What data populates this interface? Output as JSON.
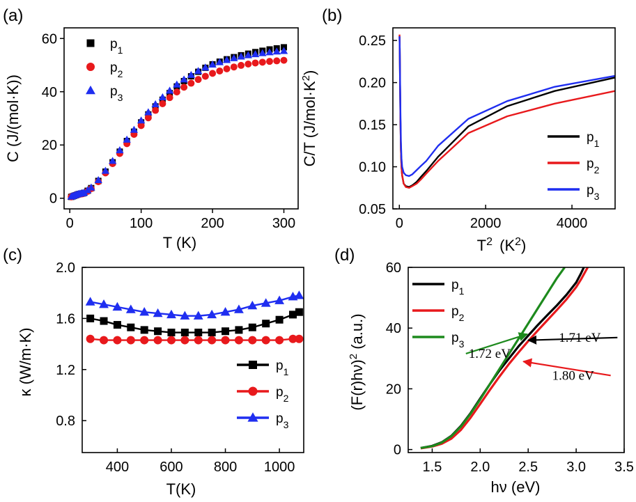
{
  "chart_data": [
    {
      "panel_label": "(a)",
      "type": "scatter",
      "xlabel": "T (K)",
      "ylabel": "C (J/(mol·K))",
      "xlim": [
        -8,
        320
      ],
      "ylim": [
        -4,
        64
      ],
      "xticks": [
        0,
        100,
        200,
        300
      ],
      "yticks": [
        0,
        20,
        40,
        60
      ],
      "legend": "top-left",
      "series": [
        {
          "name": "p1",
          "sub": "1",
          "marker": "square",
          "color": "#000000",
          "x": [
            2,
            4,
            6,
            8,
            10,
            12,
            14,
            16,
            18,
            20,
            25,
            30,
            40,
            50,
            60,
            70,
            80,
            90,
            100,
            110,
            120,
            130,
            140,
            150,
            160,
            170,
            180,
            190,
            200,
            210,
            220,
            230,
            240,
            250,
            260,
            270,
            280,
            290,
            300
          ],
          "y": [
            0.5,
            0.7,
            0.9,
            1.1,
            1.3,
            1.5,
            1.6,
            1.7,
            1.8,
            2.0,
            2.8,
            3.8,
            6.5,
            10,
            13.5,
            17.5,
            21.5,
            25,
            28.5,
            31.5,
            34.5,
            37,
            39.5,
            42,
            44,
            45.8,
            47.5,
            49,
            50.3,
            51.3,
            52.2,
            53,
            53.7,
            54.3,
            54.9,
            55.4,
            55.9,
            56.3,
            56.7
          ]
        },
        {
          "name": "p2",
          "sub": "2",
          "marker": "circle",
          "color": "#e8191c",
          "x": [
            2,
            4,
            6,
            8,
            10,
            12,
            14,
            16,
            18,
            20,
            25,
            30,
            40,
            50,
            60,
            70,
            80,
            90,
            100,
            110,
            120,
            130,
            140,
            150,
            160,
            170,
            180,
            190,
            200,
            210,
            220,
            230,
            240,
            250,
            260,
            270,
            280,
            290,
            300
          ],
          "y": [
            0.5,
            0.7,
            0.9,
            1.1,
            1.2,
            1.4,
            1.5,
            1.6,
            1.7,
            1.9,
            2.6,
            3.6,
            6.2,
            9.5,
            13,
            16.8,
            20.5,
            24,
            27.3,
            30.2,
            33,
            35.5,
            37.8,
            39.9,
            41.7,
            43.2,
            44.6,
            45.8,
            46.9,
            47.8,
            48.6,
            49.3,
            49.9,
            50.4,
            50.8,
            51.1,
            51.4,
            51.6,
            51.8
          ]
        },
        {
          "name": "p3",
          "sub": "3",
          "marker": "triangle",
          "color": "#1f2ef0",
          "x": [
            2,
            4,
            6,
            8,
            10,
            12,
            14,
            16,
            18,
            20,
            25,
            30,
            40,
            50,
            60,
            70,
            80,
            90,
            100,
            110,
            120,
            130,
            140,
            150,
            160,
            170,
            180,
            190,
            200,
            210,
            220,
            230,
            240,
            250,
            260,
            270,
            280,
            290,
            300
          ],
          "y": [
            0.6,
            0.8,
            1.0,
            1.2,
            1.4,
            1.6,
            1.7,
            1.8,
            1.9,
            2.1,
            3.0,
            4.0,
            6.8,
            10.3,
            14,
            18,
            22,
            25.7,
            29.2,
            32.3,
            35.3,
            37.9,
            40.4,
            42.7,
            44.6,
            46.3,
            47.8,
            49.1,
            50.2,
            51.1,
            51.9,
            52.6,
            53.2,
            53.7,
            54.1,
            54.5,
            54.8,
            55.1,
            55.3
          ]
        }
      ]
    },
    {
      "panel_label": "(b)",
      "type": "line",
      "xlabel": "T",
      "xlabel_sup": "2",
      "xlabel_unit": "(K",
      "xlabel_unit_sup": "2",
      "xlabel_close": ")",
      "ylabel": "C/T (J/mol·K",
      "ylabel_sup": "2",
      "ylabel_close": ")",
      "xlim": [
        -150,
        5000
      ],
      "ylim": [
        0.05,
        0.265
      ],
      "xticks": [
        0,
        2000,
        4000
      ],
      "yticks": [
        0.05,
        0.1,
        0.15,
        0.2,
        0.25
      ],
      "ytick_labels": [
        "0.05",
        "0.10",
        "0.15",
        "0.20",
        "0.25"
      ],
      "legend": "bottom-right",
      "series": [
        {
          "name": "p1",
          "sub": "1",
          "color": "#000000",
          "x": [
            4,
            9,
            16,
            25,
            36,
            49,
            64,
            100,
            150,
            225,
            300,
            400,
            500,
            625,
            900,
            1600,
            2500,
            3600,
            5000
          ],
          "y": [
            0.255,
            0.24,
            0.2,
            0.155,
            0.12,
            0.1,
            0.09,
            0.08,
            0.077,
            0.076,
            0.078,
            0.082,
            0.088,
            0.095,
            0.112,
            0.148,
            0.172,
            0.19,
            0.206
          ]
        },
        {
          "name": "p2",
          "sub": "2",
          "color": "#e8191c",
          "x": [
            4,
            9,
            16,
            25,
            36,
            49,
            64,
            100,
            150,
            225,
            300,
            400,
            500,
            625,
            900,
            1600,
            2500,
            3600,
            5000
          ],
          "y": [
            0.257,
            0.24,
            0.2,
            0.155,
            0.12,
            0.1,
            0.09,
            0.08,
            0.076,
            0.075,
            0.077,
            0.08,
            0.085,
            0.092,
            0.107,
            0.14,
            0.16,
            0.175,
            0.19
          ]
        },
        {
          "name": "p3",
          "sub": "3",
          "color": "#1f2ef0",
          "x": [
            4,
            9,
            16,
            25,
            36,
            49,
            64,
            100,
            150,
            225,
            300,
            400,
            500,
            625,
            900,
            1600,
            2500,
            3600,
            5000
          ],
          "y": [
            0.255,
            0.24,
            0.205,
            0.165,
            0.13,
            0.11,
            0.1,
            0.093,
            0.09,
            0.089,
            0.091,
            0.096,
            0.101,
            0.107,
            0.125,
            0.157,
            0.178,
            0.195,
            0.208
          ]
        }
      ]
    },
    {
      "panel_label": "(c)",
      "type": "line",
      "xlabel": "T(K)",
      "ylabel": "κ (W/m·K)",
      "xlim": [
        270,
        1090
      ],
      "ylim": [
        0.55,
        2.0
      ],
      "xticks": [
        400,
        600,
        800,
        1000
      ],
      "yticks": [
        0.8,
        1.2,
        1.6,
        2.0
      ],
      "ytick_labels": [
        "0.8",
        "1.2",
        "1.6",
        "2.0"
      ],
      "legend": "bottom-right",
      "series": [
        {
          "name": "p1",
          "sub": "1",
          "marker": "square",
          "color": "#000000",
          "x": [
            300,
            350,
            400,
            450,
            500,
            550,
            600,
            650,
            700,
            750,
            800,
            850,
            900,
            950,
            1000,
            1050,
            1073
          ],
          "y": [
            1.6,
            1.58,
            1.55,
            1.53,
            1.51,
            1.5,
            1.49,
            1.49,
            1.49,
            1.49,
            1.5,
            1.51,
            1.53,
            1.56,
            1.59,
            1.63,
            1.65
          ]
        },
        {
          "name": "p2",
          "sub": "2",
          "marker": "circle",
          "color": "#e8191c",
          "x": [
            300,
            350,
            400,
            450,
            500,
            550,
            600,
            650,
            700,
            750,
            800,
            850,
            900,
            950,
            1000,
            1050,
            1073
          ],
          "y": [
            1.44,
            1.43,
            1.43,
            1.43,
            1.43,
            1.43,
            1.43,
            1.43,
            1.43,
            1.43,
            1.43,
            1.43,
            1.43,
            1.43,
            1.43,
            1.44,
            1.44
          ]
        },
        {
          "name": "p3",
          "sub": "3",
          "marker": "triangle",
          "color": "#1f2ef0",
          "x": [
            300,
            350,
            400,
            450,
            500,
            550,
            600,
            650,
            700,
            750,
            800,
            850,
            900,
            950,
            1000,
            1050,
            1073
          ],
          "y": [
            1.73,
            1.71,
            1.69,
            1.67,
            1.65,
            1.64,
            1.63,
            1.62,
            1.62,
            1.63,
            1.65,
            1.67,
            1.7,
            1.72,
            1.74,
            1.77,
            1.78
          ]
        }
      ]
    },
    {
      "panel_label": "(d)",
      "type": "line",
      "xlabel": "hν (eV)",
      "ylabel": "(F(r)hν)",
      "ylabel_sup": "2",
      "ylabel_close": " (a.u.)",
      "xlim": [
        1.25,
        3.5
      ],
      "ylim": [
        -1,
        60
      ],
      "xticks": [
        1.5,
        2.0,
        2.5,
        3.0,
        3.5
      ],
      "xtick_labels": [
        "1.5",
        "2.0",
        "2.5",
        "3.0",
        "3.5"
      ],
      "yticks": [
        0,
        20,
        40,
        60
      ],
      "legend": "top-left",
      "series": [
        {
          "name": "p1",
          "sub": "1",
          "color": "#000000",
          "x": [
            1.38,
            1.5,
            1.6,
            1.7,
            1.8,
            1.9,
            2.0,
            2.1,
            2.2,
            2.3,
            2.4,
            2.5,
            2.6,
            2.7,
            2.8,
            2.9,
            3.0,
            3.05,
            3.08
          ],
          "y": [
            0.5,
            1.2,
            2.4,
            4.5,
            7.8,
            12,
            16.8,
            21.5,
            26,
            30,
            34,
            37.5,
            41,
            44.3,
            47.5,
            51,
            55,
            58,
            60
          ]
        },
        {
          "name": "p2",
          "sub": "2",
          "color": "#e8191c",
          "x": [
            1.38,
            1.5,
            1.6,
            1.7,
            1.8,
            1.9,
            2.0,
            2.1,
            2.2,
            2.3,
            2.4,
            2.5,
            2.6,
            2.7,
            2.8,
            2.9,
            3.0,
            3.05,
            3.12
          ],
          "y": [
            0.4,
            1.0,
            1.9,
            3.6,
            6.5,
            10.5,
            15,
            19.6,
            24,
            28.2,
            32,
            35.7,
            39.2,
            42.6,
            46,
            49.5,
            53.5,
            56,
            60
          ]
        },
        {
          "name": "p3",
          "sub": "3",
          "color": "#1d8a1d",
          "x": [
            1.38,
            1.5,
            1.6,
            1.7,
            1.8,
            1.9,
            2.0,
            2.1,
            2.2,
            2.3,
            2.4,
            2.5,
            2.6,
            2.7,
            2.8,
            2.88
          ],
          "y": [
            0.5,
            1.1,
            2.3,
            4.4,
            7.6,
            11.8,
            16.5,
            21.5,
            26.5,
            31.5,
            36.5,
            41.5,
            46.5,
            51.5,
            56.5,
            60
          ]
        }
      ],
      "annotations": [
        {
          "text": "1.71 eV",
          "color": "#000000",
          "arrow_to": [
            2.5,
            36
          ],
          "text_at": [
            2.82,
            35.5
          ]
        },
        {
          "text": "1.72 eV",
          "color": "#1d8a1d",
          "arrow_to": [
            2.49,
            38
          ],
          "text_at": [
            1.88,
            30.2
          ]
        },
        {
          "text": "1.80 eV",
          "color": "#e8191c",
          "arrow_to": [
            2.45,
            29
          ],
          "text_at": [
            2.75,
            23
          ]
        }
      ]
    }
  ]
}
